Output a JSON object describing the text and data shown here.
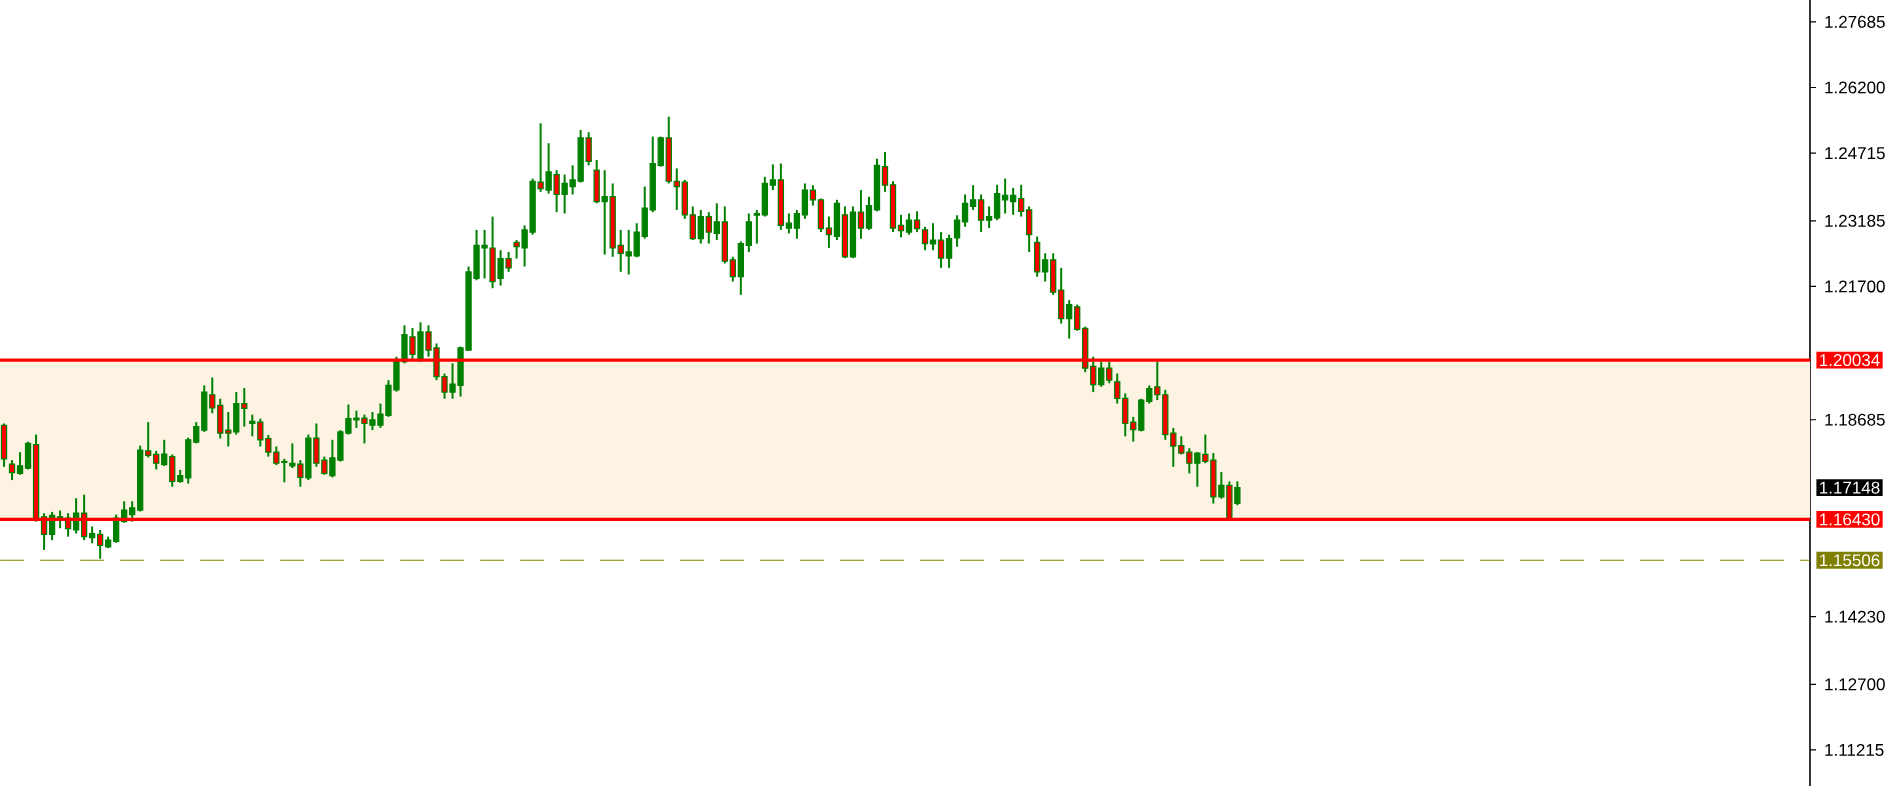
{
  "chart_data": {
    "type": "candlestick",
    "categories": [
      null,
      null,
      null,
      null,
      null,
      null,
      null,
      null,
      null,
      null,
      null,
      null,
      null,
      null,
      null,
      null,
      null,
      null,
      null,
      null,
      null,
      null,
      null,
      null,
      null,
      null,
      null,
      null,
      null,
      null,
      null,
      null,
      null,
      null,
      null,
      null,
      null,
      null,
      null,
      null,
      null,
      null,
      null,
      null,
      null,
      null,
      null,
      null,
      null,
      null,
      null,
      null,
      null,
      null,
      null,
      null,
      null,
      null,
      null,
      null,
      null,
      null,
      null,
      null,
      null,
      null,
      null,
      null,
      null,
      null,
      null,
      null,
      null,
      null,
      null,
      null,
      null,
      null,
      null,
      null,
      null,
      null,
      null,
      null,
      null,
      null,
      null,
      null,
      null,
      null,
      null,
      null,
      null,
      null,
      null,
      null,
      null,
      null,
      null,
      null,
      null,
      null,
      null,
      null,
      null,
      null,
      null,
      null,
      null,
      null,
      null,
      null,
      null,
      null,
      null,
      null,
      null,
      null,
      null,
      null,
      null,
      null,
      null,
      null,
      null,
      null,
      null,
      null,
      null,
      null,
      null,
      null,
      null,
      null,
      null,
      null,
      null,
      null,
      null,
      null,
      null,
      null,
      null,
      null,
      null,
      null,
      null,
      null,
      null,
      null,
      null,
      null,
      null,
      null,
      null,
      null,
      null,
      null,
      null,
      null,
      null,
      null,
      null,
      null,
      null,
      null,
      null,
      null,
      null,
      null,
      null,
      null,
      null,
      null,
      null,
      null,
      null,
      null,
      null,
      null,
      null,
      null,
      null,
      null,
      null,
      null,
      null,
      null,
      null,
      null,
      null,
      null,
      null,
      null,
      null,
      null,
      null,
      null,
      null,
      null,
      null,
      null,
      null,
      null,
      null,
      null,
      null,
      null,
      null,
      null,
      null,
      null,
      null,
      null,
      null,
      null,
      null,
      null,
      null,
      null,
      null,
      null,
      null,
      null,
      null,
      null
    ],
    "ohlc": [
      [
        1.1856,
        1.186,
        1.1762,
        1.178
      ],
      [
        1.1768,
        1.1777,
        1.1732,
        1.1749
      ],
      [
        1.1747,
        1.1795,
        1.1744,
        1.1764
      ],
      [
        1.1759,
        1.1819,
        1.1756,
        1.1815
      ],
      [
        1.1812,
        1.1835,
        1.1638,
        1.1642
      ],
      [
        1.1649,
        1.1657,
        1.1574,
        1.1609
      ],
      [
        1.1609,
        1.166,
        1.1596,
        1.1652
      ],
      [
        1.1642,
        1.1663,
        1.1623,
        1.1649
      ],
      [
        1.1646,
        1.1657,
        1.1604,
        1.1622
      ],
      [
        1.1619,
        1.1691,
        1.1611,
        1.1657
      ],
      [
        1.1657,
        1.1699,
        1.1596,
        1.1604
      ],
      [
        1.1602,
        1.1627,
        1.1589,
        1.1611
      ],
      [
        1.1609,
        1.1619,
        1.1554,
        1.1584
      ],
      [
        1.1581,
        1.1604,
        1.1578,
        1.1596
      ],
      [
        1.1593,
        1.1654,
        1.159,
        1.1646
      ],
      [
        1.1638,
        1.1684,
        1.1636,
        1.1664
      ],
      [
        1.1654,
        1.1684,
        1.1638,
        1.1669
      ],
      [
        1.1664,
        1.181,
        1.1661,
        1.18
      ],
      [
        1.1798,
        1.1863,
        1.1783,
        1.1788
      ],
      [
        1.179,
        1.1798,
        1.1756,
        1.177
      ],
      [
        1.1767,
        1.1823,
        1.1764,
        1.1791
      ],
      [
        1.1785,
        1.179,
        1.1717,
        1.1729
      ],
      [
        1.1729,
        1.1755,
        1.1726,
        1.1742
      ],
      [
        1.1737,
        1.1828,
        1.1724,
        1.1823
      ],
      [
        1.1818,
        1.1863,
        1.1815,
        1.1853
      ],
      [
        1.1845,
        1.1946,
        1.1841,
        1.1931
      ],
      [
        1.1925,
        1.1964,
        1.1883,
        1.1895
      ],
      [
        1.1901,
        1.1916,
        1.1826,
        1.1838
      ],
      [
        1.1845,
        1.1886,
        1.1808,
        1.1838
      ],
      [
        1.1841,
        1.1931,
        1.1835,
        1.1905
      ],
      [
        1.1905,
        1.194,
        1.1853,
        1.1894
      ],
      [
        1.186,
        1.188,
        1.1831,
        1.1865
      ],
      [
        1.1863,
        1.1871,
        1.1808,
        1.1823
      ],
      [
        1.1826,
        1.1834,
        1.1785,
        1.1795
      ],
      [
        1.1795,
        1.1808,
        1.1766,
        1.177
      ],
      [
        1.1772,
        1.178,
        1.1727,
        1.1774
      ],
      [
        1.1764,
        1.1815,
        1.1759,
        1.177
      ],
      [
        1.1768,
        1.1777,
        1.1717,
        1.1738
      ],
      [
        1.1737,
        1.1835,
        1.1732,
        1.1827
      ],
      [
        1.1827,
        1.186,
        1.1762,
        1.177
      ],
      [
        1.1777,
        1.1785,
        1.1744,
        1.1747
      ],
      [
        1.1742,
        1.1823,
        1.1738,
        1.1782
      ],
      [
        1.1777,
        1.1845,
        1.1774,
        1.1841
      ],
      [
        1.1838,
        1.1903,
        1.1835,
        1.1871
      ],
      [
        1.1868,
        1.1889,
        1.185,
        1.1872
      ],
      [
        1.1872,
        1.188,
        1.1815,
        1.186
      ],
      [
        1.1856,
        1.1886,
        1.1845,
        1.1868
      ],
      [
        1.1856,
        1.1905,
        1.185,
        1.1881
      ],
      [
        1.1878,
        1.1958,
        1.1875,
        1.1946
      ],
      [
        1.1936,
        1.2011,
        1.1932,
        1.2004
      ],
      [
        1.2,
        1.2082,
        1.1996,
        1.2061
      ],
      [
        1.2056,
        1.2076,
        1.2004,
        1.2016
      ],
      [
        1.2004,
        1.2089,
        1.2,
        1.2067
      ],
      [
        1.2067,
        1.2082,
        1.2011,
        1.2026
      ],
      [
        1.2031,
        1.2041,
        1.1958,
        1.1966
      ],
      [
        1.1966,
        1.1973,
        1.1916,
        1.1931
      ],
      [
        1.1931,
        1.1996,
        1.1916,
        1.1949
      ],
      [
        1.1946,
        1.2034,
        1.1921,
        1.2031
      ],
      [
        1.2026,
        1.2215,
        1.2025,
        1.2203
      ],
      [
        1.2188,
        1.2298,
        1.2184,
        1.2263
      ],
      [
        1.2257,
        1.2298,
        1.2188,
        1.2263
      ],
      [
        1.2257,
        1.2328,
        1.2166,
        1.2181
      ],
      [
        1.2188,
        1.2252,
        1.2172,
        1.2233
      ],
      [
        1.2233,
        1.2248,
        1.2203,
        1.2212
      ],
      [
        1.227,
        1.2275,
        1.2233,
        1.226
      ],
      [
        1.2257,
        1.2308,
        1.2215,
        1.2298
      ],
      [
        1.2293,
        1.2414,
        1.2287,
        1.2408
      ],
      [
        1.2406,
        1.2539,
        1.2384,
        1.2391
      ],
      [
        1.2388,
        1.2494,
        1.238,
        1.2429
      ],
      [
        1.2423,
        1.2433,
        1.2338,
        1.2378
      ],
      [
        1.2378,
        1.2423,
        1.2335,
        1.2403
      ],
      [
        1.2396,
        1.2444,
        1.2378,
        1.2411
      ],
      [
        1.2408,
        1.2524,
        1.2405,
        1.2506
      ],
      [
        1.2506,
        1.2519,
        1.2444,
        1.2453
      ],
      [
        1.2433,
        1.2456,
        1.2358,
        1.2362
      ],
      [
        1.2362,
        1.2433,
        1.2242,
        1.2373
      ],
      [
        1.2373,
        1.2403,
        1.2237,
        1.2257
      ],
      [
        1.2263,
        1.2298,
        1.2203,
        1.2245
      ],
      [
        1.2239,
        1.2298,
        1.2197,
        1.2248
      ],
      [
        1.2239,
        1.2313,
        1.2236,
        1.2293
      ],
      [
        1.2283,
        1.2396,
        1.2278,
        1.2347
      ],
      [
        1.2343,
        1.2509,
        1.2338,
        1.2448
      ],
      [
        1.2444,
        1.2509,
        1.2441,
        1.2506
      ],
      [
        1.2506,
        1.2554,
        1.2403,
        1.2408
      ],
      [
        1.2408,
        1.2437,
        1.2343,
        1.2396
      ],
      [
        1.2406,
        1.2411,
        1.2323,
        1.2332
      ],
      [
        1.2332,
        1.2351,
        1.2275,
        1.2278
      ],
      [
        1.2278,
        1.2343,
        1.2267,
        1.2328
      ],
      [
        1.2328,
        1.2338,
        1.2267,
        1.2293
      ],
      [
        1.229,
        1.2358,
        1.2275,
        1.2316
      ],
      [
        1.2316,
        1.2351,
        1.2222,
        1.2227
      ],
      [
        1.223,
        1.2237,
        1.2181,
        1.2192
      ],
      [
        1.2192,
        1.2272,
        1.2151,
        1.2267
      ],
      [
        1.2263,
        1.2335,
        1.2248,
        1.2316
      ],
      [
        1.2331,
        1.2343,
        1.2267,
        1.2335
      ],
      [
        1.2332,
        1.2418,
        1.2328,
        1.2403
      ],
      [
        1.2399,
        1.2446,
        1.2388,
        1.2411
      ],
      [
        1.2411,
        1.2448,
        1.2298,
        1.2308
      ],
      [
        1.2302,
        1.2335,
        1.229,
        1.2313
      ],
      [
        1.2302,
        1.2343,
        1.2278,
        1.2335
      ],
      [
        1.2332,
        1.2403,
        1.2323,
        1.2388
      ],
      [
        1.2388,
        1.2399,
        1.2353,
        1.2366
      ],
      [
        1.2366,
        1.2369,
        1.2293,
        1.2301
      ],
      [
        1.2302,
        1.2328,
        1.2257,
        1.2287
      ],
      [
        1.2283,
        1.2366,
        1.2275,
        1.2358
      ],
      [
        1.2332,
        1.2351,
        1.2234,
        1.2237
      ],
      [
        1.2237,
        1.2351,
        1.2234,
        1.2338
      ],
      [
        1.2338,
        1.2388,
        1.2278,
        1.2302
      ],
      [
        1.2302,
        1.2373,
        1.2298,
        1.2353
      ],
      [
        1.2343,
        1.2459,
        1.234,
        1.2444
      ],
      [
        1.2441,
        1.2474,
        1.2384,
        1.2399
      ],
      [
        1.24,
        1.2408,
        1.2293,
        1.2302
      ],
      [
        1.2308,
        1.2332,
        1.2281,
        1.2296
      ],
      [
        1.2293,
        1.2335,
        1.2287,
        1.232
      ],
      [
        1.232,
        1.234,
        1.2293,
        1.2301
      ],
      [
        1.2298,
        1.2305,
        1.2252,
        1.2267
      ],
      [
        1.2266,
        1.2313,
        1.2252,
        1.2275
      ],
      [
        1.2275,
        1.2293,
        1.2212,
        1.2234
      ],
      [
        1.2234,
        1.2287,
        1.2212,
        1.2278
      ],
      [
        1.228,
        1.2331,
        1.226,
        1.232
      ],
      [
        1.2316,
        1.2378,
        1.2305,
        1.2358
      ],
      [
        1.2351,
        1.2399,
        1.2343,
        1.2366
      ],
      [
        1.2366,
        1.2378,
        1.2293,
        1.232
      ],
      [
        1.232,
        1.2351,
        1.2302,
        1.2328
      ],
      [
        1.2325,
        1.24,
        1.232,
        1.238
      ],
      [
        1.2366,
        1.2414,
        1.2335,
        1.2376
      ],
      [
        1.2362,
        1.2393,
        1.2332,
        1.2376
      ],
      [
        1.2369,
        1.24,
        1.2328,
        1.234
      ],
      [
        1.2343,
        1.2351,
        1.2248,
        1.2287
      ],
      [
        1.227,
        1.2283,
        1.2192,
        1.2203
      ],
      [
        1.2203,
        1.2245,
        1.2181,
        1.223
      ],
      [
        1.223,
        1.2245,
        1.2151,
        1.2157
      ],
      [
        1.2162,
        1.2212,
        1.2086,
        1.2097
      ],
      [
        1.2097,
        1.2139,
        1.2052,
        1.2129
      ],
      [
        1.2124,
        1.2129,
        1.207,
        1.2073
      ],
      [
        1.2075,
        1.2079,
        1.1976,
        1.1985
      ],
      [
        1.1989,
        1.2011,
        1.1931,
        1.1948
      ],
      [
        1.1948,
        1.2,
        1.1943,
        1.1985
      ],
      [
        1.1985,
        1.2,
        1.1951,
        1.1958
      ],
      [
        1.1954,
        1.1973,
        1.1905,
        1.1917
      ],
      [
        1.1917,
        1.1928,
        1.1831,
        1.186
      ],
      [
        1.1863,
        1.1875,
        1.1819,
        1.1846
      ],
      [
        1.1845,
        1.1916,
        1.1842,
        1.1913
      ],
      [
        1.191,
        1.1946,
        1.1905,
        1.1939
      ],
      [
        1.1943,
        1.2,
        1.1913,
        1.1925
      ],
      [
        1.1925,
        1.1936,
        1.1823,
        1.1835
      ],
      [
        1.1838,
        1.185,
        1.1762,
        1.1809
      ],
      [
        1.181,
        1.1831,
        1.179,
        1.1793
      ],
      [
        1.1795,
        1.1804,
        1.1747,
        1.177
      ],
      [
        1.177,
        1.1795,
        1.1717,
        1.1793
      ],
      [
        1.179,
        1.1835,
        1.177,
        1.1774
      ],
      [
        1.1777,
        1.1793,
        1.1679,
        1.1694
      ],
      [
        1.1694,
        1.175,
        1.169,
        1.172
      ],
      [
        1.172,
        1.1729,
        1.1642,
        1.1645
      ],
      [
        1.1679,
        1.1729,
        1.1675,
        1.17148
      ],
      null,
      null,
      null,
      null,
      null,
      null,
      null,
      null,
      null,
      null,
      null,
      null,
      null,
      null,
      null,
      null,
      null,
      null,
      null,
      null,
      null,
      null,
      null,
      null,
      null,
      null,
      null,
      null,
      null,
      null,
      null,
      null,
      null,
      null,
      null,
      null,
      null,
      null,
      null,
      null,
      null,
      null,
      null,
      null,
      null,
      null,
      null,
      null,
      null,
      null,
      null,
      null,
      null,
      null,
      null,
      null,
      null,
      null,
      null,
      null,
      null,
      null,
      null,
      null,
      null,
      null,
      null,
      null,
      null,
      null,
      null
    ],
    "color": "#008000",
    "colors": [
      "#ff0000",
      "#ff0000",
      "#008000",
      "#008000",
      "#ff0000",
      "#ff0000",
      "#008000",
      "#008000",
      "#ff0000",
      "#008000",
      "#ff0000",
      "#008000",
      "#ff0000",
      "#008000",
      "#008000",
      "#008000",
      "#008000",
      "#008000",
      "#ff0000",
      "#ff0000",
      "#008000",
      "#ff0000",
      "#008000",
      "#008000",
      "#008000",
      "#008000",
      "#ff0000",
      "#ff0000",
      "#ff0000",
      "#008000",
      "#ff0000",
      "#008000",
      "#ff0000",
      "#ff0000",
      "#ff0000",
      "#008000",
      "#008000",
      "#ff0000",
      "#008000",
      "#ff0000",
      "#ff0000",
      "#008000",
      "#008000",
      "#008000",
      "#008000",
      "#ff0000",
      "#008000",
      "#008000",
      "#008000",
      "#008000",
      "#008000",
      "#ff0000",
      "#008000",
      "#ff0000",
      "#ff0000",
      "#ff0000",
      "#008000",
      "#008000",
      "#008000",
      "#008000",
      "#008000",
      "#ff0000",
      "#008000",
      "#ff0000",
      "#ff0000",
      "#008000",
      "#008000",
      "#ff0000",
      "#008000",
      "#ff0000",
      "#008000",
      "#008000",
      "#008000",
      "#ff0000",
      "#ff0000",
      "#008000",
      "#ff0000",
      "#ff0000",
      "#008000",
      "#008000",
      "#008000",
      "#008000",
      "#008000",
      "#ff0000",
      "#ff0000",
      "#ff0000",
      "#ff0000",
      "#008000",
      "#ff0000",
      "#008000",
      "#ff0000",
      "#ff0000",
      "#008000",
      "#008000",
      "#008000",
      "#008000",
      "#008000",
      "#ff0000",
      "#008000",
      "#008000",
      "#008000",
      "#ff0000",
      "#ff0000",
      "#ff0000",
      "#008000",
      "#ff0000",
      "#008000",
      "#ff0000",
      "#008000",
      "#008000",
      "#ff0000",
      "#ff0000",
      "#ff0000",
      "#008000",
      "#ff0000",
      "#ff0000",
      "#008000",
      "#ff0000",
      "#008000",
      "#008000",
      "#008000",
      "#008000",
      "#ff0000",
      "#008000",
      "#008000",
      "#008000",
      "#008000",
      "#ff0000",
      "#ff0000",
      "#ff0000",
      "#008000",
      "#ff0000",
      "#ff0000",
      "#008000",
      "#ff0000",
      "#ff0000",
      "#ff0000",
      "#008000",
      "#ff0000",
      "#ff0000",
      "#ff0000",
      "#ff0000",
      "#008000",
      "#008000",
      "#ff0000",
      "#ff0000",
      "#ff0000",
      "#ff0000",
      "#ff0000",
      "#008000",
      "#ff0000",
      "#ff0000",
      "#008000",
      "#ff0000",
      "#008000",
      null,
      null,
      null,
      null,
      null,
      null,
      null,
      null,
      null,
      null,
      null,
      null,
      null,
      null,
      null,
      null,
      null,
      null,
      null,
      null,
      null,
      null,
      null,
      null,
      null,
      null,
      null,
      null,
      null,
      null,
      null,
      null,
      null,
      null,
      null,
      null,
      null,
      null,
      null,
      null,
      null,
      null,
      null,
      null,
      null,
      null,
      null,
      null,
      null,
      null,
      null,
      null,
      null,
      null,
      null,
      null,
      null,
      null,
      null,
      null,
      null,
      null,
      null,
      null,
      null,
      null,
      null,
      null,
      null,
      null,
      null
    ],
    "ylim": [
      1.104,
      1.2818
    ],
    "yticks": [
      1.27685,
      {
        "value": 1.262,
        "label": "1.26200"
      },
      1.24715,
      1.23185,
      {
        "value": 1.217,
        "label": "1.21700"
      },
      1.18685,
      {
        "value": 1.1423,
        "label": "1.14230"
      },
      {
        "value": 1.127,
        "label": "1.12700"
      },
      1.11215
    ],
    "tick_labels": "y",
    "ref_lines": [
      {
        "axis": "y",
        "value": 1.20034,
        "label": "1.20034",
        "color": "#ff0000",
        "line_style": "solid"
      },
      {
        "axis": "y",
        "value": 1.1643,
        "label": "1.16430",
        "color": "#ff0000",
        "line_style": "solid"
      },
      {
        "axis": "y",
        "value": 1.15506,
        "label": "1.15506",
        "color": "#808000",
        "line_style": "dashed"
      }
    ],
    "annotations": [
      "1.17148"
    ],
    "bands": [
      {
        "axis": "y",
        "from": 1.1643,
        "to": 1.20034,
        "color": "#fcf3e3"
      }
    ]
  }
}
